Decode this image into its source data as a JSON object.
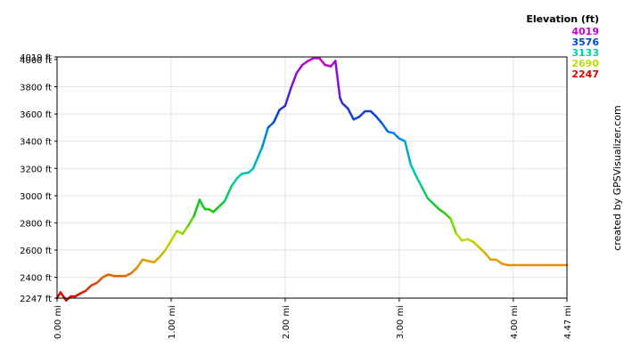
{
  "chart_data": {
    "type": "line",
    "title": "",
    "xlabel": "",
    "ylabel": "",
    "xlim": [
      0,
      4.47
    ],
    "ylim": [
      2247,
      4019
    ],
    "grid": true,
    "x_ticks": [
      {
        "value": 0,
        "label": "0.00 mi"
      },
      {
        "value": 1,
        "label": "1.00 mi"
      },
      {
        "value": 2,
        "label": "2.00 mi"
      },
      {
        "value": 3,
        "label": "3.00 mi"
      },
      {
        "value": 4,
        "label": "4.00 mi"
      },
      {
        "value": 4.47,
        "label": "4.47 mi"
      }
    ],
    "y_ticks": [
      {
        "value": 2247,
        "label": "2247 ft"
      },
      {
        "value": 2400,
        "label": "2400 ft"
      },
      {
        "value": 2600,
        "label": "2600 ft"
      },
      {
        "value": 2800,
        "label": "2800 ft"
      },
      {
        "value": 3000,
        "label": "3000 ft"
      },
      {
        "value": 3200,
        "label": "3200 ft"
      },
      {
        "value": 3400,
        "label": "3400 ft"
      },
      {
        "value": 3600,
        "label": "3600 ft"
      },
      {
        "value": 3800,
        "label": "3800 ft"
      },
      {
        "value": 4000,
        "label": "4000 ft"
      },
      {
        "value": 4019,
        "label": "4019 ft"
      }
    ],
    "legend": {
      "title": "Elevation (ft)",
      "placement": "top-right",
      "entries": [
        {
          "label": "4019",
          "color": "#cc00cc"
        },
        {
          "label": "3576",
          "color": "#0044dd"
        },
        {
          "label": "3133",
          "color": "#00ccaa"
        },
        {
          "label": "2690",
          "color": "#bbdd00"
        },
        {
          "label": "2247",
          "color": "#dd0000"
        }
      ]
    },
    "series": [
      {
        "color_scale": "elevation",
        "x": [
          0,
          0.03,
          0.08,
          0.12,
          0.16,
          0.2,
          0.25,
          0.3,
          0.35,
          0.4,
          0.45,
          0.5,
          0.55,
          0.6,
          0.65,
          0.7,
          0.75,
          0.8,
          0.85,
          0.9,
          0.95,
          1.0,
          1.05,
          1.1,
          1.15,
          1.2,
          1.25,
          1.28,
          1.3,
          1.33,
          1.37,
          1.42,
          1.47,
          1.53,
          1.58,
          1.62,
          1.68,
          1.72,
          1.76,
          1.8,
          1.85,
          1.9,
          1.95,
          2.0,
          2.05,
          2.1,
          2.15,
          2.2,
          2.25,
          2.3,
          2.35,
          2.4,
          2.44,
          2.48,
          2.5,
          2.55,
          2.6,
          2.65,
          2.7,
          2.75,
          2.8,
          2.85,
          2.9,
          2.95,
          3.0,
          3.05,
          3.1,
          3.15,
          3.2,
          3.25,
          3.3,
          3.35,
          3.4,
          3.45,
          3.5,
          3.55,
          3.6,
          3.65,
          3.7,
          3.75,
          3.8,
          3.85,
          3.9,
          3.95,
          4.0,
          4.2,
          4.47
        ],
        "y": [
          2247,
          2290,
          2230,
          2260,
          2260,
          2280,
          2300,
          2340,
          2360,
          2400,
          2420,
          2410,
          2410,
          2410,
          2430,
          2470,
          2530,
          2520,
          2510,
          2550,
          2600,
          2670,
          2740,
          2720,
          2780,
          2850,
          2970,
          2920,
          2900,
          2900,
          2880,
          2920,
          2960,
          3070,
          3130,
          3160,
          3170,
          3200,
          3280,
          3360,
          3500,
          3540,
          3630,
          3660,
          3790,
          3900,
          3960,
          3990,
          4010,
          4010,
          3960,
          3950,
          3990,
          3720,
          3680,
          3640,
          3560,
          3580,
          3620,
          3620,
          3580,
          3530,
          3470,
          3460,
          3420,
          3400,
          3230,
          3140,
          3060,
          2980,
          2940,
          2900,
          2870,
          2830,
          2720,
          2670,
          2680,
          2660,
          2620,
          2580,
          2530,
          2530,
          2500,
          2490,
          2490,
          2490,
          2490
        ]
      }
    ],
    "credit": "created by GPSVisualizer.com"
  }
}
